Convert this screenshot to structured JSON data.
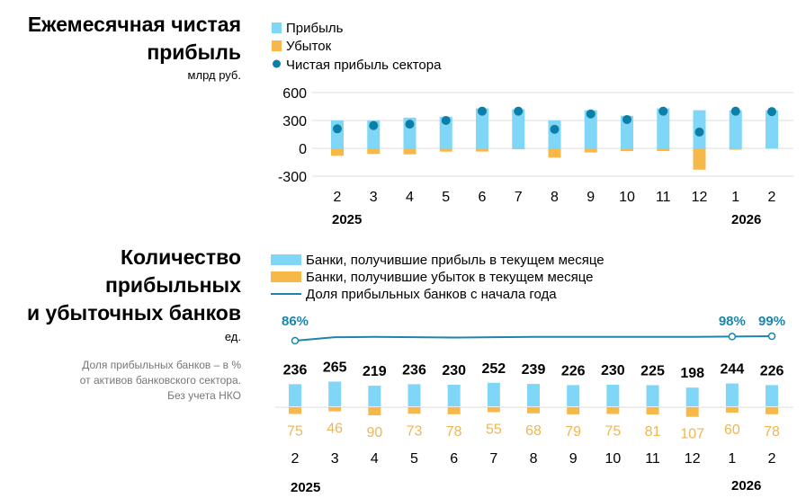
{
  "colors": {
    "profit": "#7fd6f7",
    "loss": "#f7b84a",
    "net": "#0a7fa8",
    "line": "#1a86ad",
    "grid": "#dddddd",
    "loss_label": "#f0b552"
  },
  "chart_data": [
    {
      "type": "bar",
      "title_lines": [
        "Ежемесячная чистая",
        "прибыль"
      ],
      "unit": "млрд руб.",
      "categories": [
        "2",
        "3",
        "4",
        "5",
        "6",
        "7",
        "8",
        "9",
        "10",
        "11",
        "12",
        "1",
        "2"
      ],
      "year_labels": [
        "2025",
        "2026"
      ],
      "yticks": [
        600,
        300,
        0,
        -300
      ],
      "ylim": [
        -300,
        600
      ],
      "grid": true,
      "legend_position": "top-left",
      "series": [
        {
          "name": "Прибыль",
          "kind": "bar",
          "values": [
            300,
            300,
            330,
            340,
            430,
            420,
            300,
            410,
            350,
            430,
            410,
            410,
            410
          ]
        },
        {
          "name": "Убыток",
          "kind": "bar",
          "values": [
            -80,
            -60,
            -65,
            -35,
            -35,
            -10,
            -100,
            -45,
            -30,
            -30,
            -230,
            -15,
            -5
          ]
        },
        {
          "name": "Чистая прибыль сектора",
          "kind": "scatter",
          "values": [
            210,
            245,
            260,
            300,
            400,
            400,
            205,
            370,
            310,
            400,
            175,
            400,
            395
          ]
        }
      ]
    },
    {
      "type": "bar",
      "title_lines": [
        "Количество",
        "прибыльных",
        "и убыточных банков"
      ],
      "unit": "ед.",
      "note_lines": [
        "Доля прибыльных банков – в %",
        "от активов банковского сектора.",
        "Без учета НКО"
      ],
      "categories": [
        "2",
        "3",
        "4",
        "5",
        "6",
        "7",
        "8",
        "9",
        "10",
        "11",
        "12",
        "1",
        "2"
      ],
      "year_labels": [
        "2025",
        "2026"
      ],
      "legend_position": "top-left",
      "series": [
        {
          "name": "Банки, получившие прибыль в текущем месяце",
          "kind": "bar",
          "values": [
            236,
            265,
            219,
            236,
            230,
            252,
            239,
            226,
            230,
            225,
            198,
            244,
            226
          ]
        },
        {
          "name": "Банки, получившие убыток в текущем месяце",
          "kind": "bar",
          "values": [
            75,
            46,
            90,
            73,
            78,
            55,
            68,
            79,
            75,
            81,
            107,
            60,
            78
          ]
        },
        {
          "name": "Доля прибыльных банков с начала года",
          "kind": "line",
          "values": [
            86,
            96,
            97,
            96,
            95,
            96,
            97,
            97,
            97,
            97,
            97,
            98,
            99
          ],
          "point_labels": {
            "0": "86%",
            "11": "98%",
            "12": "99%"
          }
        }
      ]
    }
  ]
}
